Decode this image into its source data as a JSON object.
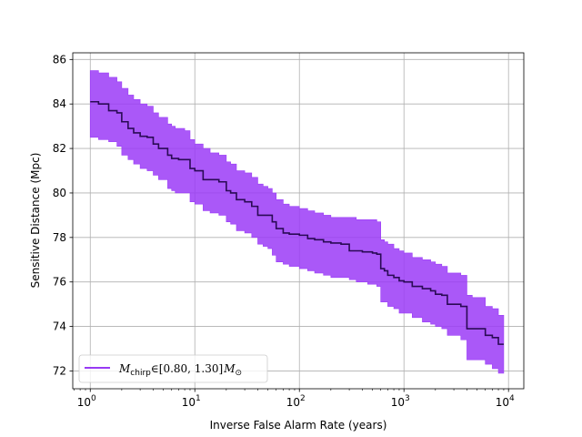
{
  "chart_data": {
    "type": "line",
    "xscale": "log",
    "xlim": [
      0.68,
      14000
    ],
    "ylim": [
      71.2,
      86.3
    ],
    "xlabel": "Inverse False Alarm Rate (years)",
    "ylabel": "Sensitive Distance (Mpc)",
    "grid": true,
    "legend_position": "lower-left",
    "x_ticks": [
      {
        "value": 1,
        "base": "10",
        "exp": "0"
      },
      {
        "value": 10,
        "base": "10",
        "exp": "1"
      },
      {
        "value": 100,
        "base": "10",
        "exp": "2"
      },
      {
        "value": 1000,
        "base": "10",
        "exp": "3"
      },
      {
        "value": 10000,
        "base": "10",
        "exp": "4"
      }
    ],
    "y_ticks": [
      {
        "value": 72,
        "label": "72"
      },
      {
        "value": 74,
        "label": "74"
      },
      {
        "value": 76,
        "label": "76"
      },
      {
        "value": 78,
        "label": "78"
      },
      {
        "value": 80,
        "label": "80"
      },
      {
        "value": 82,
        "label": "82"
      },
      {
        "value": 84,
        "label": "84"
      },
      {
        "value": 86,
        "label": "86"
      }
    ],
    "series": [
      {
        "label_base": "M",
        "label_sub": "chirp",
        "label_rest": "∈[0.80, 1.30]",
        "label_unit": "M",
        "label_unit_sub": "⊙",
        "line_color": "#2a0a55",
        "band_color": "#9b3bf7",
        "legend_color": "#8a1ef2",
        "x": [
          1,
          1.2,
          1.5,
          1.8,
          2.0,
          2.3,
          2.6,
          3.0,
          3.5,
          4.0,
          4.5,
          5.0,
          5.5,
          6.0,
          6.5,
          7.0,
          8.0,
          9.0,
          10,
          12,
          14,
          17,
          20,
          22,
          25,
          30,
          35,
          40,
          45,
          50,
          55,
          60,
          70,
          80,
          100,
          120,
          140,
          170,
          200,
          250,
          300,
          350,
          400,
          450,
          500,
          550,
          600,
          650,
          700,
          800,
          900,
          1000,
          1200,
          1500,
          1800,
          2000,
          2300,
          2600,
          3000,
          3500,
          4000,
          4500,
          5000,
          6000,
          7000,
          8000,
          9000
        ],
        "y": [
          84.1,
          84.0,
          83.7,
          83.6,
          83.2,
          82.9,
          82.7,
          82.55,
          82.5,
          82.2,
          82.0,
          82.0,
          81.7,
          81.55,
          81.55,
          81.5,
          81.5,
          81.1,
          81.0,
          80.6,
          80.6,
          80.5,
          80.1,
          80.0,
          79.7,
          79.6,
          79.4,
          79.0,
          79.0,
          79.0,
          78.7,
          78.4,
          78.2,
          78.15,
          78.1,
          77.95,
          77.9,
          77.8,
          77.75,
          77.7,
          77.4,
          77.4,
          77.35,
          77.35,
          77.3,
          77.25,
          76.6,
          76.5,
          76.3,
          76.2,
          76.05,
          76.0,
          75.8,
          75.7,
          75.6,
          75.45,
          75.4,
          75.0,
          75.0,
          74.9,
          73.9,
          73.9,
          73.9,
          73.6,
          73.5,
          73.2,
          73.2
        ],
        "upper": [
          85.5,
          85.4,
          85.2,
          85.0,
          84.7,
          84.4,
          84.2,
          84.0,
          83.9,
          83.6,
          83.4,
          83.4,
          83.1,
          83.0,
          82.9,
          82.9,
          82.8,
          82.4,
          82.2,
          82.0,
          81.8,
          81.7,
          81.4,
          81.3,
          81.0,
          80.9,
          80.7,
          80.4,
          80.3,
          80.2,
          80.0,
          79.7,
          79.5,
          79.4,
          79.3,
          79.2,
          79.1,
          79.0,
          78.9,
          78.9,
          78.9,
          78.8,
          78.8,
          78.8,
          78.8,
          78.7,
          77.9,
          77.8,
          77.7,
          77.5,
          77.4,
          77.3,
          77.1,
          77.0,
          76.9,
          76.8,
          76.7,
          76.4,
          76.4,
          76.3,
          75.4,
          75.3,
          75.3,
          74.9,
          74.8,
          74.5,
          74.5
        ],
        "lower": [
          82.5,
          82.4,
          82.3,
          82.1,
          81.7,
          81.5,
          81.3,
          81.1,
          81.0,
          80.8,
          80.6,
          80.6,
          80.2,
          80.1,
          80.0,
          80.0,
          80.0,
          79.6,
          79.5,
          79.2,
          79.1,
          79.0,
          78.7,
          78.6,
          78.3,
          78.2,
          78.0,
          77.7,
          77.6,
          77.5,
          77.2,
          76.9,
          76.8,
          76.7,
          76.6,
          76.5,
          76.4,
          76.3,
          76.2,
          76.2,
          76.1,
          76.0,
          76.0,
          75.9,
          75.9,
          75.8,
          75.1,
          75.1,
          74.9,
          74.8,
          74.6,
          74.6,
          74.4,
          74.2,
          74.1,
          74.0,
          73.9,
          73.6,
          73.6,
          73.4,
          72.5,
          72.5,
          72.5,
          72.3,
          72.1,
          71.9,
          71.9
        ]
      }
    ]
  }
}
